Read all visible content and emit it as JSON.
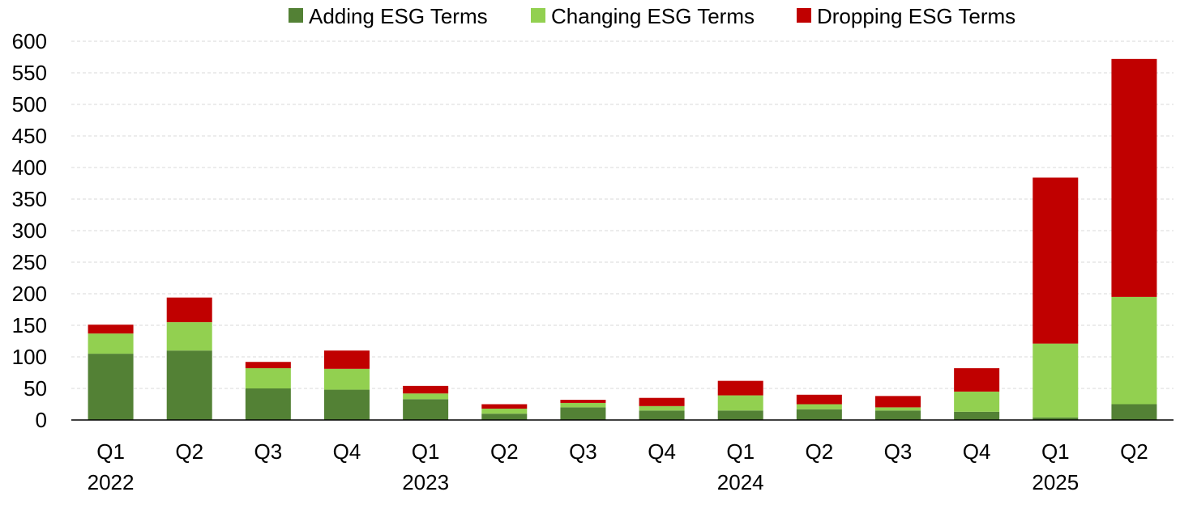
{
  "chart_data": {
    "type": "bar",
    "stacked": true,
    "categories": [
      "Q1",
      "Q2",
      "Q3",
      "Q4",
      "Q1",
      "Q2",
      "Q3",
      "Q4",
      "Q1",
      "Q2",
      "Q3",
      "Q4",
      "Q1",
      "Q2"
    ],
    "years": [
      {
        "label": "2022",
        "category_index": 0
      },
      {
        "label": "2023",
        "category_index": 4
      },
      {
        "label": "2024",
        "category_index": 8
      },
      {
        "label": "2025",
        "category_index": 12
      }
    ],
    "series": [
      {
        "name": "Adding ESG Terms",
        "color": "#538135",
        "values": [
          105,
          110,
          50,
          48,
          33,
          10,
          20,
          15,
          15,
          17,
          15,
          13,
          4,
          25
        ]
      },
      {
        "name": "Changing ESG Terms",
        "color": "#92d050",
        "values": [
          32,
          45,
          32,
          33,
          9,
          8,
          7,
          7,
          24,
          8,
          5,
          32,
          117,
          170
        ]
      },
      {
        "name": "Dropping ESG Terms",
        "color": "#c00000",
        "values": [
          14,
          39,
          10,
          29,
          12,
          7,
          5,
          13,
          23,
          15,
          18,
          37,
          263,
          377
        ]
      }
    ],
    "ylim": [
      0,
      600
    ],
    "yticks": [
      "0",
      "50",
      "100",
      "150",
      "200",
      "250",
      "300",
      "350",
      "400",
      "450",
      "500",
      "550",
      "600"
    ],
    "grid": true,
    "legend_position": "top"
  }
}
